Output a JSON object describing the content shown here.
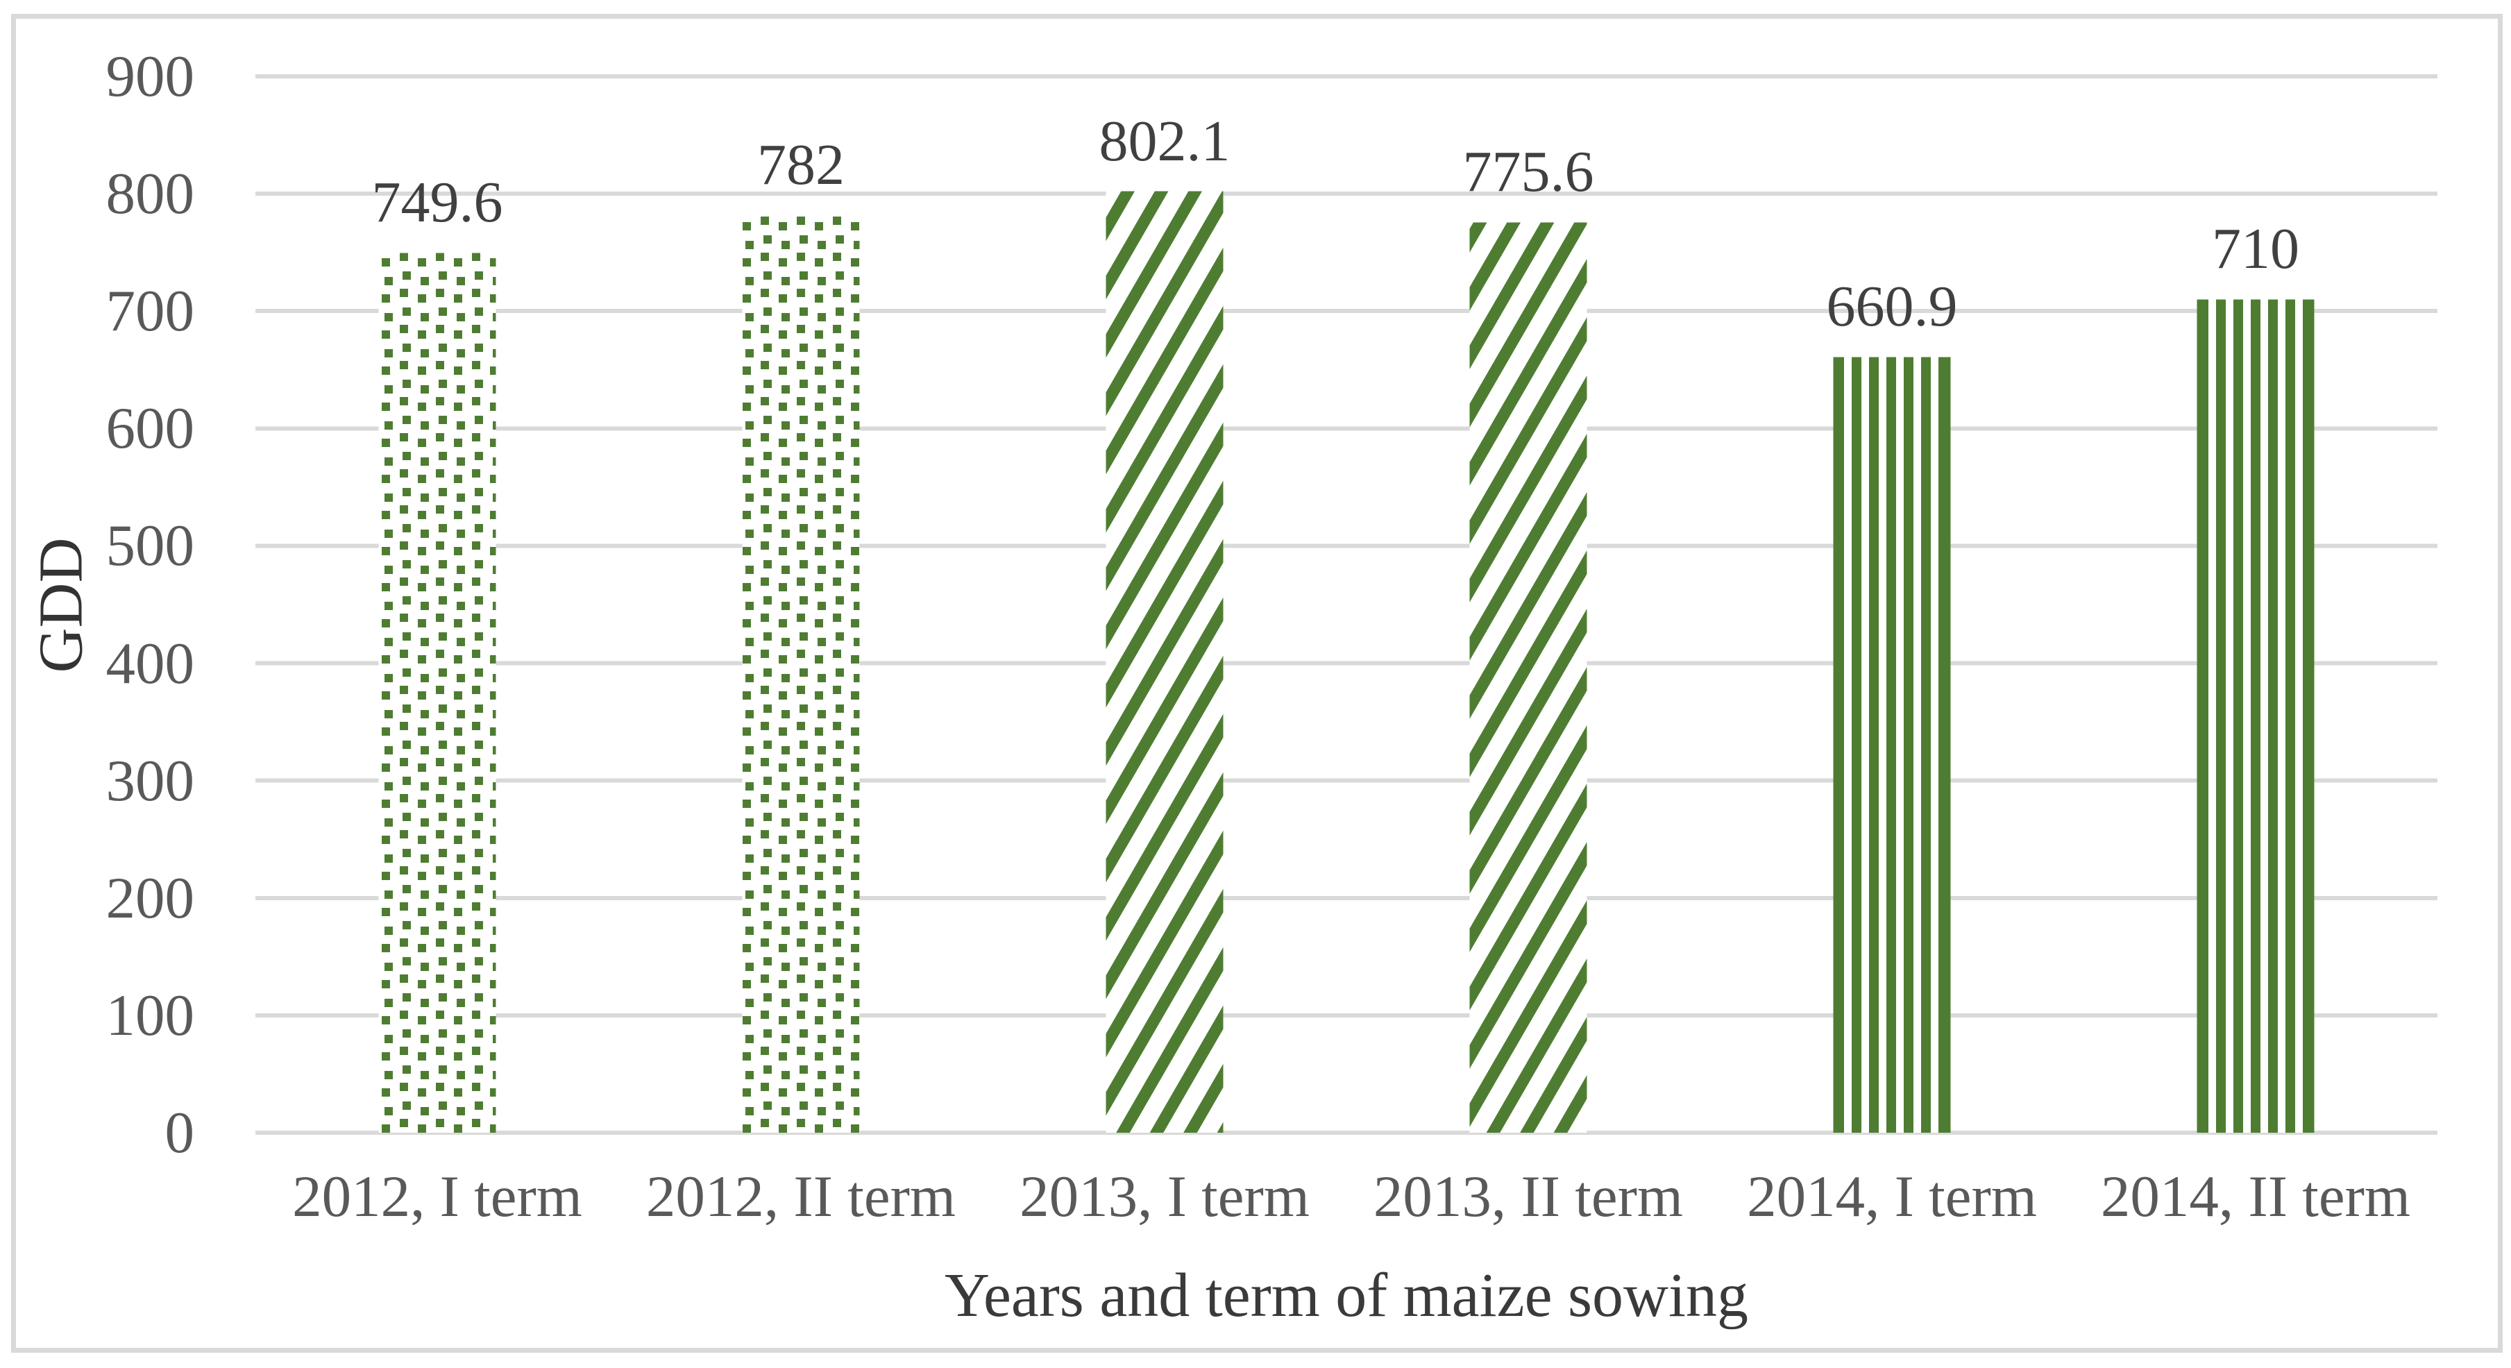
{
  "chart_data": {
    "type": "bar",
    "title": "",
    "categories": [
      "2012, I term",
      "2012, II term",
      "2013, I term",
      "2013, II term",
      "2014, I term",
      "2014, II term"
    ],
    "values": [
      749.6,
      782,
      802.1,
      775.6,
      660.9,
      710
    ],
    "data_labels": [
      "749.6",
      "782",
      "802.1",
      "775.6",
      "660.9",
      "710"
    ],
    "bar_patterns": [
      "dots",
      "dots",
      "diagonal",
      "diagonal",
      "vertical",
      "vertical"
    ],
    "xlabel": "Years and term of maize sowing",
    "ylabel": "GDD",
    "ylim": [
      0,
      900
    ],
    "ytick_step": 100,
    "yticks": [
      "0",
      "100",
      "200",
      "300",
      "400",
      "500",
      "600",
      "700",
      "800",
      "900"
    ],
    "grid": "horizontal-on",
    "legend": "none",
    "colors": {
      "bar_green": "#4e7d32",
      "bar_background": "#ffffff",
      "gridline": "#d9d9d9",
      "axis_line": "#d9d9d9",
      "frame_border": "#d9d9d9",
      "tick_text": "#595959",
      "data_label_text": "#404040",
      "axis_title_text": "#3a3a3a"
    }
  }
}
